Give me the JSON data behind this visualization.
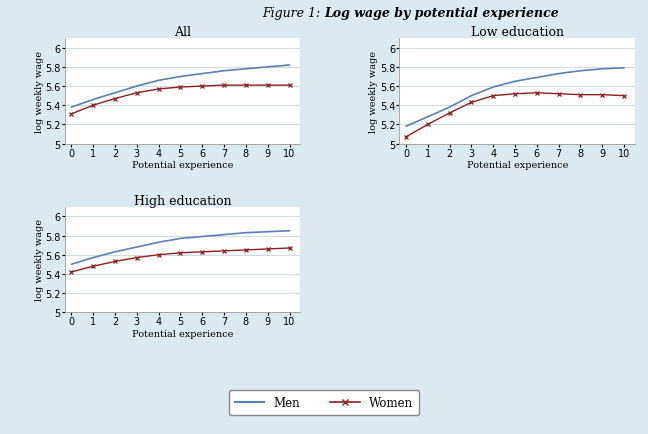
{
  "x": [
    0,
    1,
    2,
    3,
    4,
    5,
    6,
    7,
    8,
    9,
    10
  ],
  "panels": [
    {
      "title": "All",
      "men": [
        5.38,
        5.46,
        5.53,
        5.6,
        5.66,
        5.7,
        5.73,
        5.76,
        5.78,
        5.8,
        5.82
      ],
      "women": [
        5.31,
        5.4,
        5.47,
        5.53,
        5.57,
        5.59,
        5.6,
        5.61,
        5.61,
        5.61,
        5.61
      ]
    },
    {
      "title": "Low education",
      "men": [
        5.18,
        5.28,
        5.38,
        5.5,
        5.59,
        5.65,
        5.69,
        5.73,
        5.76,
        5.78,
        5.79
      ],
      "women": [
        5.07,
        5.2,
        5.32,
        5.43,
        5.5,
        5.52,
        5.53,
        5.52,
        5.51,
        5.51,
        5.5
      ]
    },
    {
      "title": "High education",
      "men": [
        5.5,
        5.57,
        5.63,
        5.68,
        5.73,
        5.77,
        5.79,
        5.81,
        5.83,
        5.84,
        5.85
      ],
      "women": [
        5.42,
        5.48,
        5.53,
        5.57,
        5.6,
        5.62,
        5.63,
        5.64,
        5.65,
        5.66,
        5.67
      ]
    }
  ],
  "xlabel": "Potential experience",
  "ylabel": "log weekly wage",
  "ylim": [
    5.0,
    6.1
  ],
  "yticks": [
    5.0,
    5.2,
    5.4,
    5.6,
    5.8,
    6.0
  ],
  "ytick_labels": [
    "5",
    "5.2",
    "5.4",
    "5.6",
    "5.8",
    "6"
  ],
  "xticks": [
    0,
    1,
    2,
    3,
    4,
    5,
    6,
    7,
    8,
    9,
    10
  ],
  "men_color": "#5b7fb5",
  "women_color": "#8b2020",
  "bg_color": "#dce9f0",
  "plot_bg": "#ffffff",
  "title_plain": "Figure 1: ",
  "title_bold": "Log wage by potential experience",
  "title_fontsize": 9,
  "panel_title_fontsize": 9,
  "axis_label_fontsize": 7,
  "tick_fontsize": 7,
  "legend_fontsize": 8.5
}
